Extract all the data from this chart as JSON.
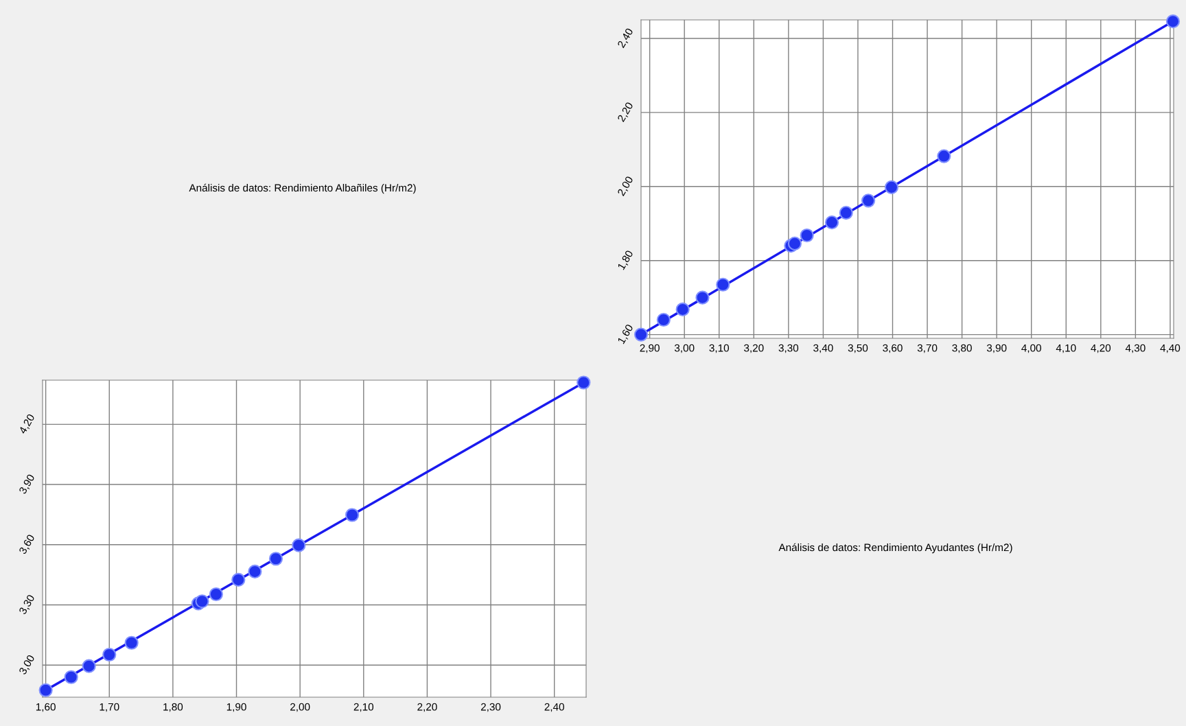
{
  "chart_data": [
    {
      "type": "other",
      "title": "Análisis de datos: Rendimiento Albañiles (Hr/m2)"
    },
    {
      "type": "scatter",
      "xlim": [
        2.875,
        4.41
      ],
      "ylim": [
        1.59,
        2.45
      ],
      "xticks": [
        {
          "value": 2.9,
          "label": "2,90"
        },
        {
          "value": 3.0,
          "label": "3,00"
        },
        {
          "value": 3.1,
          "label": "3,10"
        },
        {
          "value": 3.2,
          "label": "3,20"
        },
        {
          "value": 3.3,
          "label": "3,30"
        },
        {
          "value": 3.4,
          "label": "3,40"
        },
        {
          "value": 3.5,
          "label": "3,50"
        },
        {
          "value": 3.6,
          "label": "3,60"
        },
        {
          "value": 3.7,
          "label": "3,70"
        },
        {
          "value": 3.8,
          "label": "3,80"
        },
        {
          "value": 3.9,
          "label": "3,90"
        },
        {
          "value": 4.0,
          "label": "4,00"
        },
        {
          "value": 4.1,
          "label": "4,10"
        },
        {
          "value": 4.2,
          "label": "4,20"
        },
        {
          "value": 4.3,
          "label": "4,30"
        },
        {
          "value": 4.4,
          "label": "4,40"
        }
      ],
      "yticks": [
        {
          "value": 1.6,
          "label": "1,60"
        },
        {
          "value": 1.8,
          "label": "1,80"
        },
        {
          "value": 2.0,
          "label": "2,00"
        },
        {
          "value": 2.2,
          "label": "2,20"
        },
        {
          "value": 2.4,
          "label": "2,40"
        }
      ],
      "grid": true,
      "series": [
        {
          "type": "line",
          "marker": "none",
          "color": "#1a1aee",
          "x": [
            2.875,
            4.408
          ],
          "values": [
            1.6,
            2.446
          ]
        },
        {
          "type": "scatter",
          "marker": "circle",
          "color": "#2233ee",
          "x": [
            2.875,
            2.94,
            2.995,
            3.052,
            3.111,
            3.307,
            3.318,
            3.353,
            3.425,
            3.466,
            3.53,
            3.597,
            3.748,
            4.408
          ],
          "values": [
            1.6,
            1.64,
            1.668,
            1.7,
            1.735,
            1.84,
            1.846,
            1.868,
            1.903,
            1.929,
            1.962,
            1.998,
            2.082,
            2.446
          ]
        }
      ]
    },
    {
      "type": "scatter",
      "xlim": [
        1.595,
        2.45
      ],
      "ylim": [
        2.84,
        4.42
      ],
      "xticks": [
        {
          "value": 1.6,
          "label": "1,60"
        },
        {
          "value": 1.7,
          "label": "1,70"
        },
        {
          "value": 1.8,
          "label": "1,80"
        },
        {
          "value": 1.9,
          "label": "1,90"
        },
        {
          "value": 2.0,
          "label": "2,00"
        },
        {
          "value": 2.1,
          "label": "2,10"
        },
        {
          "value": 2.2,
          "label": "2,20"
        },
        {
          "value": 2.3,
          "label": "2,30"
        },
        {
          "value": 2.4,
          "label": "2,40"
        }
      ],
      "yticks": [
        {
          "value": 3.0,
          "label": "3,00"
        },
        {
          "value": 3.3,
          "label": "3,30"
        },
        {
          "value": 3.6,
          "label": "3,60"
        },
        {
          "value": 3.9,
          "label": "3,90"
        },
        {
          "value": 4.2,
          "label": "4,20"
        }
      ],
      "grid": true,
      "series": [
        {
          "type": "line",
          "marker": "none",
          "color": "#1a1aee",
          "x": [
            1.6,
            2.446
          ],
          "values": [
            2.875,
            4.408
          ]
        },
        {
          "type": "scatter",
          "marker": "circle",
          "color": "#2233ee",
          "x": [
            1.6,
            1.64,
            1.668,
            1.7,
            1.735,
            1.84,
            1.846,
            1.868,
            1.903,
            1.929,
            1.962,
            1.998,
            2.082,
            2.446
          ],
          "values": [
            2.875,
            2.94,
            2.995,
            3.052,
            3.111,
            3.307,
            3.318,
            3.353,
            3.425,
            3.466,
            3.53,
            3.597,
            3.748,
            4.408
          ]
        }
      ]
    },
    {
      "type": "other",
      "title": "Análisis de datos: Rendimiento Ayudantes (Hr/m2)"
    }
  ]
}
